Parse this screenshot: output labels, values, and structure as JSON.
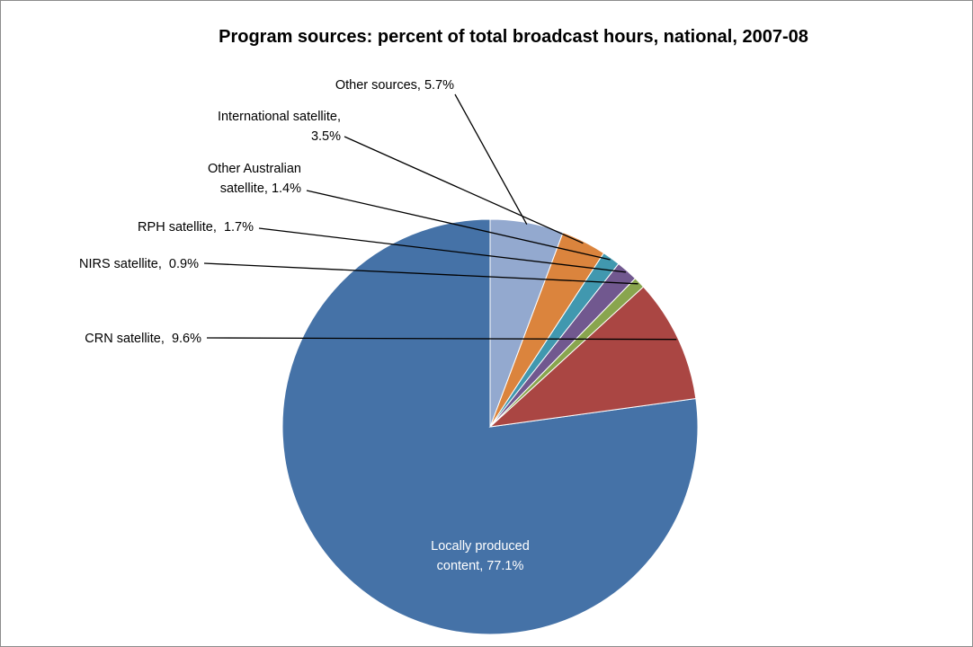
{
  "chart_data": {
    "type": "pie",
    "title": "Program sources: percent of total broadcast hours, national, 2007-08",
    "slices": [
      {
        "label": "Locally produced content",
        "value": 77.1,
        "display": "77.1%",
        "color": "#4572A7"
      },
      {
        "label": "CRN satellite",
        "value": 9.6,
        "display": "9.6%",
        "color": "#AA4643"
      },
      {
        "label": "NIRS satellite",
        "value": 0.9,
        "display": "0.9%",
        "color": "#89A54E"
      },
      {
        "label": "RPH satellite",
        "value": 1.7,
        "display": "1.7%",
        "color": "#71588F"
      },
      {
        "label": "Other Australian satellite",
        "value": 1.4,
        "display": "1.4%",
        "color": "#4198AF"
      },
      {
        "label": "International satellite",
        "value": 3.5,
        "display": "3.5%",
        "color": "#DB843D"
      },
      {
        "label": "Other sources",
        "value": 5.7,
        "display": "5.7%",
        "color": "#93A9CF"
      }
    ],
    "label_lines": [
      [
        "Locally produced",
        "content, 77.1%"
      ],
      [
        "CRN satellite,  9.6%"
      ],
      [
        "NIRS satellite,  0.9%"
      ],
      [
        "RPH satellite,  1.7%"
      ],
      [
        "Other Australian",
        "satellite, 1.4%"
      ],
      [
        "International satellite,",
        "3.5%"
      ],
      [
        "Other sources, 5.7%"
      ]
    ],
    "legend": "none"
  }
}
